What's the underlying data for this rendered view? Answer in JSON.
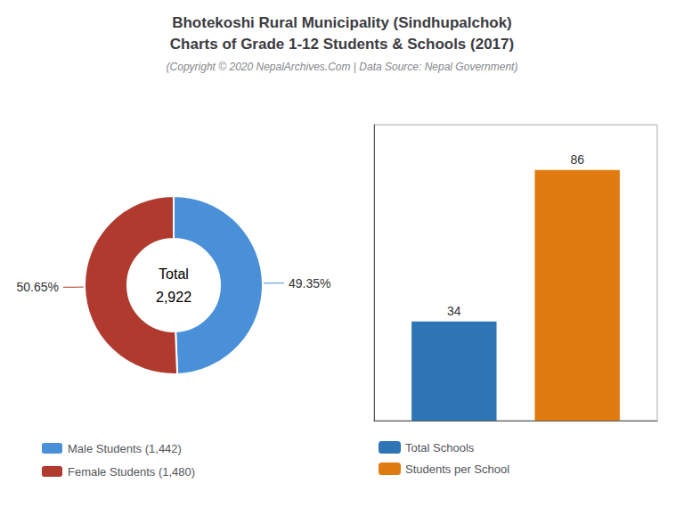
{
  "title": "Bhotekoshi Rural Municipality (Sindhupalchok)\nCharts of Grade 1-12 Students & Schools (2017)",
  "subtitle": "(Copyright © 2020 NepalArchives.Com | Data Source: Nepal Government)",
  "chart_data": [
    {
      "type": "donut",
      "categories": [
        "Male Students (1,442)",
        "Female Students (1,480)"
      ],
      "values": [
        49.35,
        50.65
      ],
      "value_labels": [
        "49.35%",
        "50.65%"
      ],
      "colors": [
        "#4a90d9",
        "#b03a2e"
      ],
      "data_labels": true,
      "annotations": [
        "Total",
        "2,922"
      ],
      "legend": "bottom"
    },
    {
      "type": "bar",
      "categories": [
        null
      ],
      "series": [
        {
          "name": "Total Schools",
          "color": "#2e75b6",
          "values": [
            34
          ]
        },
        {
          "name": "Students per School",
          "color": "#e07b10",
          "values": [
            86
          ]
        }
      ],
      "ylim": [
        0,
        101.48
      ],
      "yticks": [],
      "tick_labels": false,
      "grid": false,
      "data_labels": true,
      "legend": "bottom"
    }
  ]
}
